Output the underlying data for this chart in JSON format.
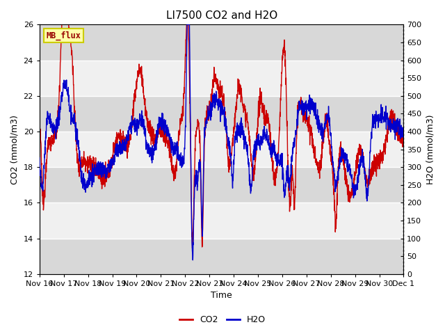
{
  "title": "LI7500 CO2 and H2O",
  "xlabel": "Time",
  "ylabel_left": "CO2 (mmol/m3)",
  "ylabel_right": "H2O (mmol/m3)",
  "ylim_left": [
    12,
    26
  ],
  "ylim_right": [
    0,
    700
  ],
  "yticks_left": [
    12,
    14,
    16,
    18,
    20,
    22,
    24,
    26
  ],
  "yticks_right": [
    0,
    50,
    100,
    150,
    200,
    250,
    300,
    350,
    400,
    450,
    500,
    550,
    600,
    650,
    700
  ],
  "xtick_labels": [
    "Nov 16",
    "Nov 17",
    "Nov 18",
    "Nov 19",
    "Nov 20",
    "Nov 21",
    "Nov 22",
    "Nov 23",
    "Nov 24",
    "Nov 25",
    "Nov 26",
    "Nov 27",
    "Nov 28",
    "Nov 29",
    "Nov 30",
    "Dec 1"
  ],
  "co2_color": "#cc0000",
  "h2o_color": "#0000cc",
  "background_color": "#ffffff",
  "plot_bg_light": "#f0f0f0",
  "plot_bg_dark": "#d8d8d8",
  "grid_color": "#ffffff",
  "annotation_text": "MB_flux",
  "annotation_bg": "#ffffaa",
  "annotation_border": "#cccc00",
  "title_fontsize": 11,
  "axis_fontsize": 9,
  "tick_fontsize": 8,
  "legend_fontsize": 9,
  "line_width": 1.0,
  "n_points": 2160,
  "n_days": 15
}
